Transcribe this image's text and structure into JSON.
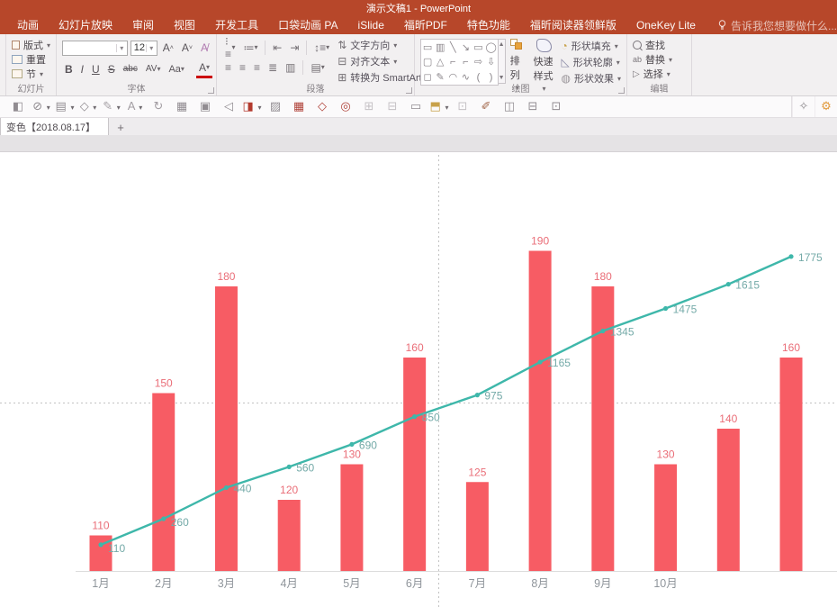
{
  "window": {
    "title": "演示文稿1 - PowerPoint"
  },
  "tabs": [
    "动画",
    "幻灯片放映",
    "审阅",
    "视图",
    "开发工具",
    "口袋动画 PA",
    "iSlide",
    "福昕PDF",
    "特色功能",
    "福昕阅读器领鲜版",
    "OneKey Lite"
  ],
  "tell_me": "告诉我您想要做什么...",
  "ribbon": {
    "slides": {
      "label": "幻灯片",
      "layout": "版式",
      "reset": "重置",
      "section": "节"
    },
    "font": {
      "label": "字体",
      "name_value": "",
      "size_value": "12",
      "bold": "B",
      "italic": "I",
      "underline": "U",
      "strike": "S",
      "clear": "abc",
      "spacing": "AV",
      "case": "Aa",
      "color": "A"
    },
    "paragraph": {
      "label": "段落",
      "text_direction": "文字方向",
      "align_text": "对齐文本",
      "smartart": "转换为 SmartArt"
    },
    "drawing": {
      "label": "绘图",
      "arrange": "排列",
      "quick_styles": "快速样式",
      "fill": "形状填充",
      "outline": "形状轮廓",
      "effects": "形状效果"
    },
    "editing": {
      "label": "编辑",
      "find": "查找",
      "replace": "替换",
      "select": "选择"
    }
  },
  "slide_tab": {
    "title": "变色【2018.08.17】",
    "add": "+"
  },
  "shape_gallery": [
    "▭",
    "▥",
    "╲",
    "↘",
    "▭",
    "◯",
    "▢",
    "△",
    "⌐",
    "⌐",
    "⇨",
    "⇩",
    "◻",
    "✎",
    "◠",
    "∿",
    "(",
    ")"
  ],
  "qat_icons": [
    {
      "name": "format-painter",
      "glyph": "◧",
      "color": "#918c91",
      "caret": false
    },
    {
      "name": "no-fill",
      "glyph": "⊘",
      "color": "#918c91",
      "caret": true
    },
    {
      "name": "notes",
      "glyph": "▤",
      "color": "#918c91",
      "caret": true
    },
    {
      "name": "shapes",
      "glyph": "◇",
      "color": "#918c91",
      "caret": true
    },
    {
      "name": "edit-pen",
      "glyph": "✎",
      "color": "#a39ea3",
      "caret": true
    },
    {
      "name": "text",
      "glyph": "A",
      "color": "#a39ea3",
      "caret": true
    },
    {
      "name": "rotate-text",
      "glyph": "↻",
      "color": "#a39ea3",
      "caret": false
    },
    {
      "name": "table-grid",
      "glyph": "▦",
      "color": "#918c91",
      "caret": false
    },
    {
      "name": "portrait",
      "glyph": "▣",
      "color": "#918c91",
      "caret": false
    },
    {
      "name": "speaker",
      "glyph": "◁",
      "color": "#918c91",
      "caret": false
    },
    {
      "name": "color-swatch",
      "glyph": "◨",
      "color": "#b33a2e",
      "caret": true
    },
    {
      "name": "brush",
      "glyph": "▨",
      "color": "#918c91",
      "caret": false
    },
    {
      "name": "anim-grid",
      "glyph": "▦",
      "color": "#b0433a",
      "caret": false
    },
    {
      "name": "diamond",
      "glyph": "◇",
      "color": "#b0433a",
      "caret": false
    },
    {
      "name": "target",
      "glyph": "◎",
      "color": "#b0433a",
      "caret": false
    },
    {
      "name": "slide-tool",
      "glyph": "⊞",
      "color": "#c5c1c5",
      "caret": false
    },
    {
      "name": "chart-tool",
      "glyph": "⊟",
      "color": "#c5c1c5",
      "caret": false
    },
    {
      "name": "picture-frame",
      "glyph": "▭",
      "color": "#918c91",
      "caret": false
    },
    {
      "name": "paste-special",
      "glyph": "⬒",
      "color": "#c8a14a",
      "caret": true
    },
    {
      "name": "table-tool",
      "glyph": "⊡",
      "color": "#c5c1c5",
      "caret": false
    },
    {
      "name": "color-brush",
      "glyph": "✐",
      "color": "#a2674b",
      "caret": false
    },
    {
      "name": "video",
      "glyph": "◫",
      "color": "#918c91",
      "caret": false
    },
    {
      "name": "printer",
      "glyph": "⊟",
      "color": "#918c91",
      "caret": false
    },
    {
      "name": "fullscreen",
      "glyph": "⊡",
      "color": "#918c91",
      "caret": false
    }
  ],
  "right_tools": {
    "wand": "✧",
    "gear": "⚙"
  },
  "colors": {
    "titlebar": "#b7472a",
    "bar": "#f75c64",
    "bar_label": "#ea6e78",
    "line": "#3eb7aa",
    "line_label": "#74aaa8",
    "axis_label": "#8f959b",
    "axis_line": "#dcdcdc",
    "guide": "#c2c2c2"
  },
  "chart_data": {
    "type": "bar+line combo",
    "title": "",
    "categories": [
      "1月",
      "2月",
      "3月",
      "4月",
      "5月",
      "6月",
      "7月",
      "8月",
      "9月",
      "10月",
      "",
      ""
    ],
    "series": [
      {
        "name": "monthly-bars",
        "type": "bar",
        "values": [
          110,
          150,
          180,
          120,
          130,
          160,
          125,
          190,
          180,
          130,
          140,
          160
        ]
      },
      {
        "name": "cumulative-line",
        "type": "line",
        "values": [
          110,
          260,
          440,
          560,
          690,
          850,
          975,
          1165,
          1345,
          1475,
          1615,
          1775
        ]
      }
    ],
    "bar_axis_min": 100,
    "data_labels": true,
    "legend": "none",
    "gridlines": "off"
  }
}
